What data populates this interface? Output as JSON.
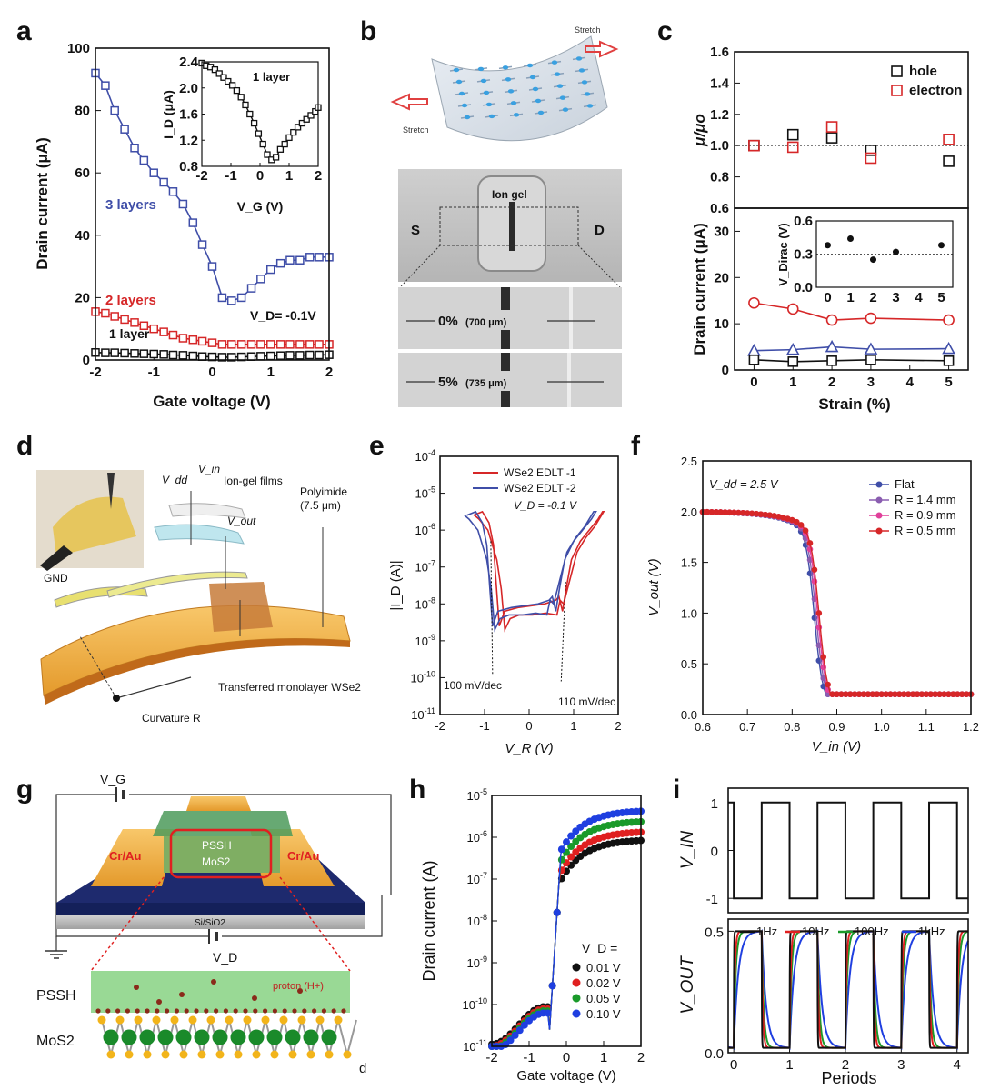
{
  "chart_data": [
    {
      "id": "a",
      "type": "line",
      "panel_label": "a",
      "xlabel": "Gate voltage (V)",
      "ylabel": "Drain current (μA)",
      "xlim": [
        -2,
        2
      ],
      "ylim": [
        0,
        100
      ],
      "xticks": [
        "-2",
        "-1",
        "0",
        "1",
        "2"
      ],
      "yticks": [
        "0",
        "20",
        "40",
        "60",
        "80",
        "100"
      ],
      "annotation": "V_D= -0.1V",
      "series": [
        {
          "name": "3 layers",
          "color": "#3f4ea8",
          "x": [
            -2,
            -1.83,
            -1.67,
            -1.5,
            -1.33,
            -1.17,
            -1,
            -0.83,
            -0.67,
            -0.5,
            -0.33,
            -0.17,
            0,
            0.17,
            0.33,
            0.5,
            0.67,
            0.83,
            1,
            1.17,
            1.33,
            1.5,
            1.67,
            1.83,
            2
          ],
          "y": [
            92,
            88,
            80,
            74,
            68,
            64,
            60,
            57,
            54,
            50,
            44,
            37,
            30,
            20,
            19,
            20,
            23,
            26,
            29,
            31,
            32,
            32,
            33,
            33,
            33
          ]
        },
        {
          "name": "2 layers",
          "color": "#d62728",
          "x": [
            -2,
            -1.83,
            -1.67,
            -1.5,
            -1.33,
            -1.17,
            -1,
            -0.83,
            -0.67,
            -0.5,
            -0.33,
            -0.17,
            0,
            0.17,
            0.33,
            0.5,
            0.67,
            0.83,
            1,
            1.17,
            1.33,
            1.5,
            1.67,
            1.83,
            2
          ],
          "y": [
            15.5,
            15,
            14,
            13,
            12,
            11,
            10,
            9,
            8,
            7,
            6.5,
            6,
            5.5,
            5,
            5,
            5,
            5,
            5,
            5,
            5,
            5,
            5,
            5,
            5,
            5
          ]
        },
        {
          "name": "1 layer",
          "color": "#111111",
          "x": [
            -2,
            -1.83,
            -1.67,
            -1.5,
            -1.33,
            -1.17,
            -1,
            -0.83,
            -0.67,
            -0.5,
            -0.33,
            -0.17,
            0,
            0.17,
            0.33,
            0.5,
            0.67,
            0.83,
            1,
            1.17,
            1.33,
            1.5,
            1.67,
            1.83,
            2
          ],
          "y": [
            2.4,
            2.3,
            2.3,
            2.2,
            2.1,
            2,
            1.9,
            1.8,
            1.6,
            1.5,
            1.3,
            1.1,
            1,
            0.9,
            0.9,
            1,
            1.1,
            1.2,
            1.3,
            1.4,
            1.5,
            1.5,
            1.6,
            1.6,
            1.7
          ]
        }
      ],
      "inset": {
        "title": "1 layer",
        "xlabel": "V_G (V)",
        "ylabel": "I_D (μA)",
        "xlim": [
          -2,
          2
        ],
        "ylim": [
          0.8,
          2.4
        ],
        "xticks": [
          "-2",
          "-1",
          "0",
          "1",
          "2"
        ],
        "yticks": [
          "0.8",
          "1.2",
          "1.6",
          "2.0",
          "2.4"
        ],
        "x": [
          -2,
          -1.85,
          -1.7,
          -1.55,
          -1.4,
          -1.25,
          -1.1,
          -0.95,
          -0.8,
          -0.65,
          -0.5,
          -0.35,
          -0.2,
          -0.05,
          0.1,
          0.25,
          0.4,
          0.55,
          0.7,
          0.85,
          1,
          1.15,
          1.3,
          1.45,
          1.6,
          1.75,
          1.9,
          2
        ],
        "y": [
          2.38,
          2.34,
          2.32,
          2.28,
          2.22,
          2.16,
          2.1,
          2.04,
          1.96,
          1.86,
          1.74,
          1.6,
          1.46,
          1.3,
          1.14,
          0.98,
          0.9,
          0.94,
          1.06,
          1.14,
          1.24,
          1.32,
          1.4,
          1.46,
          1.52,
          1.58,
          1.64,
          1.7
        ]
      }
    },
    {
      "id": "c",
      "type": "scatter",
      "panel_label": "c",
      "xlabel": "Strain (%)",
      "upper": {
        "ylabel": "μ/μo",
        "ylim": [
          0.6,
          1.6
        ],
        "yticks": [
          "0.6",
          "0.8",
          "1.0",
          "1.2",
          "1.4",
          "1.6"
        ],
        "series": [
          {
            "name": "hole",
            "color": "#111111",
            "x": [
              0,
              1,
              2,
              3,
              5
            ],
            "y": [
              1.0,
              1.07,
              1.05,
              0.97,
              0.9
            ]
          },
          {
            "name": "electron",
            "color": "#d62728",
            "x": [
              0,
              1,
              2,
              3,
              5
            ],
            "y": [
              1.0,
              0.99,
              1.12,
              0.92,
              1.04
            ]
          }
        ]
      },
      "lower": {
        "ylabel": "Drain current (μA)",
        "ylim": [
          0,
          35
        ],
        "xticks": [
          "0",
          "1",
          "2",
          "3",
          "4",
          "5"
        ],
        "yticks": [
          "0",
          "10",
          "20",
          "30"
        ],
        "series": [
          {
            "name": "red",
            "color": "#d62728",
            "x": [
              0,
              1,
              2,
              3,
              5
            ],
            "y": [
              14.5,
              13.2,
              10.8,
              11.2,
              10.8
            ]
          },
          {
            "name": "blue",
            "color": "#3f4ea8",
            "x": [
              0,
              1,
              2,
              3,
              5
            ],
            "y": [
              4.2,
              4.4,
              5.0,
              4.5,
              4.6
            ]
          },
          {
            "name": "black",
            "color": "#111111",
            "x": [
              0,
              1,
              2,
              3,
              5
            ],
            "y": [
              2.2,
              1.8,
              2.0,
              2.2,
              2.0
            ]
          }
        ],
        "inset": {
          "ylabel": "V_Dirac (V)",
          "ylim": [
            0,
            0.6
          ],
          "yticks": [
            "0.0",
            "0.3",
            "0.6"
          ],
          "xticks": [
            "0",
            "1",
            "2",
            "3",
            "4",
            "5"
          ],
          "x": [
            0,
            1,
            2,
            3,
            5
          ],
          "y": [
            0.38,
            0.44,
            0.25,
            0.32,
            0.38
          ]
        }
      }
    },
    {
      "id": "e",
      "type": "line",
      "panel_label": "e",
      "xlabel": "V_R (V)",
      "ylabel": "|I_D (A)|",
      "xlim": [
        -2,
        2
      ],
      "ylim_log": [
        -11,
        -4
      ],
      "xticks": [
        "-2",
        "-1",
        "0",
        "1",
        "2"
      ],
      "yticks": [
        "10^-11",
        "10^-10",
        "10^-9",
        "10^-8",
        "10^-7",
        "10^-6",
        "10^-5",
        "10^-4"
      ],
      "annotations": [
        "V_D = -0.1 V",
        "100 mV/dec",
        "110 mV/dec"
      ],
      "series": [
        {
          "name": "WSe2 EDLT -1",
          "color": "#d62728"
        },
        {
          "name": "WSe2 EDLT -2",
          "color": "#3f4ea8"
        }
      ]
    },
    {
      "id": "f",
      "type": "line",
      "panel_label": "f",
      "xlabel": "V_in (V)",
      "ylabel": "V_out (V)",
      "xlim": [
        0.6,
        1.2
      ],
      "ylim": [
        0,
        2.5
      ],
      "xticks": [
        "0.6",
        "0.7",
        "0.8",
        "0.9",
        "1.0",
        "1.1",
        "1.2"
      ],
      "yticks": [
        "0.0",
        "0.5",
        "1.0",
        "1.5",
        "2.0",
        "2.5"
      ],
      "annotation": "V_dd = 2.5 V",
      "series": [
        {
          "name": "Flat",
          "color": "#3f4ea8",
          "shift": -0.006
        },
        {
          "name": "R = 1.4 mm",
          "color": "#8a5db0",
          "shift": -0.002
        },
        {
          "name": "R = 0.9 mm",
          "color": "#e0409a",
          "shift": 0.002
        },
        {
          "name": "R = 0.5 mm",
          "color": "#d62728",
          "shift": 0.005
        }
      ]
    },
    {
      "id": "h",
      "type": "line",
      "panel_label": "h",
      "xlabel": "Gate voltage (V)",
      "ylabel": "Drain current (A)",
      "xlim": [
        -2,
        2
      ],
      "ylim_log": [
        -11,
        -5
      ],
      "xticks": [
        "-2",
        "-1",
        "0",
        "1",
        "2"
      ],
      "yticks": [
        "10^-11",
        "10^-10",
        "10^-9",
        "10^-8",
        "10^-7",
        "10^-6",
        "10^-5"
      ],
      "legend_title": "V_D =",
      "series": [
        {
          "name": "0.01 V",
          "color": "#111111",
          "sat": -6.05
        },
        {
          "name": "0.02 V",
          "color": "#e02020",
          "sat": -5.85
        },
        {
          "name": "0.05 V",
          "color": "#1a9a2a",
          "sat": -5.6
        },
        {
          "name": "0.10 V",
          "color": "#1f3fe0",
          "sat": -5.35
        }
      ]
    },
    {
      "id": "i",
      "type": "line",
      "panel_label": "i",
      "xlabel": "Periods",
      "upper": {
        "ylabel": "V_IN",
        "ylim": [
          -1.3,
          1.3
        ],
        "yticks": [
          "-1",
          "0",
          "1"
        ]
      },
      "lower": {
        "ylabel": "V_OUT",
        "ylim": [
          0,
          0.55
        ],
        "yticks": [
          "0.0",
          "0.5"
        ],
        "xticks": [
          "0",
          "1",
          "2",
          "3",
          "4"
        ],
        "series": [
          {
            "name": "1Hz",
            "color": "#111111",
            "tau": 0.004
          },
          {
            "name": "10Hz",
            "color": "#e02020",
            "tau": 0.02
          },
          {
            "name": "100Hz",
            "color": "#1a9a2a",
            "tau": 0.035
          },
          {
            "name": "1kHz",
            "color": "#1f3fe0",
            "tau": 0.08
          }
        ]
      }
    }
  ],
  "panel_b": {
    "label": "b",
    "stretch_left": "Stretch",
    "stretch_right": "Stretch",
    "ion_gel": "Ion gel",
    "source": "S",
    "drain": "D",
    "strain0": "0%",
    "len0": "(700 μm)",
    "strain5": "5%",
    "len5": "(735 μm)"
  },
  "panel_d": {
    "label": "d",
    "vdd": "V_dd",
    "vin": "V_in",
    "vout": "V_out",
    "ion_gel": "Ion-gel films",
    "polyimide": "Polyimide",
    "polyimide_thick": "(7.5 μm)",
    "gnd": "GND",
    "monolayer": "Transferred monolayer WSe2",
    "curvature": "Curvature R"
  },
  "panel_g": {
    "label": "g",
    "vg": "V_G",
    "vd": "V_D",
    "pssh": "PSSH",
    "mos2": "MoS2",
    "electrode_left": "Cr/Au",
    "electrode_right": "Cr/Au",
    "substrate": "Si/SiO2",
    "pssh_lower": "PSSH",
    "mos2_lower": "MoS2",
    "proton": "proton (H+)",
    "d": "d"
  }
}
